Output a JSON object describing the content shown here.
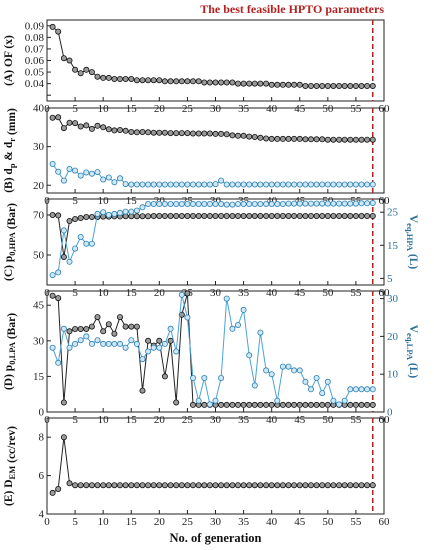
{
  "annotation": "The best feasible HPTO parameters",
  "colors": {
    "black_series": "#222222",
    "blue_series": "#4aa3d6",
    "blue_text": "#2a6f9a",
    "marker_line": "#b22222"
  },
  "chart_data": [
    {
      "type": "line",
      "ylabel": "(A) OF (x)",
      "xlim": [
        0,
        60
      ],
      "ylim": [
        0.025,
        0.095
      ],
      "yticks": [
        0.03,
        0.04,
        0.05,
        0.06,
        0.07,
        0.08,
        0.09
      ],
      "ytick_labels": [
        "",
        "0.04",
        "0.05",
        "0.06",
        "0.07",
        "0.08",
        "0.09"
      ],
      "series": [
        {
          "color": "black",
          "x": [
            1,
            2,
            3,
            4,
            5,
            6,
            7,
            8,
            9,
            10,
            11,
            12,
            13,
            14,
            15,
            16,
            17,
            18,
            19,
            20,
            21,
            22,
            23,
            24,
            25,
            26,
            27,
            28,
            29,
            30,
            31,
            32,
            33,
            34,
            35,
            36,
            37,
            38,
            39,
            40,
            41,
            42,
            43,
            44,
            45,
            46,
            47,
            48,
            49,
            50,
            51,
            52,
            53,
            54,
            55,
            56,
            57,
            58
          ],
          "y": [
            0.089,
            0.085,
            0.062,
            0.06,
            0.052,
            0.049,
            0.052,
            0.05,
            0.046,
            0.045,
            0.045,
            0.044,
            0.044,
            0.044,
            0.044,
            0.043,
            0.043,
            0.043,
            0.043,
            0.043,
            0.042,
            0.042,
            0.042,
            0.042,
            0.042,
            0.042,
            0.042,
            0.041,
            0.041,
            0.041,
            0.041,
            0.041,
            0.041,
            0.04,
            0.04,
            0.04,
            0.04,
            0.04,
            0.04,
            0.039,
            0.039,
            0.039,
            0.039,
            0.039,
            0.039,
            0.038,
            0.038,
            0.038,
            0.038,
            0.038,
            0.038,
            0.038,
            0.038,
            0.038,
            0.038,
            0.038,
            0.038,
            0.038
          ]
        }
      ]
    },
    {
      "type": "line",
      "ylabel": "(B) d",
      "ylabel_sub1": "p",
      "ylabel_mid": " & d",
      "ylabel_sub2": "r",
      "ylabel_unit": " (mm)",
      "xlim": [
        0,
        60
      ],
      "ylim": [
        18,
        40
      ],
      "yticks": [
        20,
        30,
        40
      ],
      "series": [
        {
          "color": "black",
          "x": [
            1,
            2,
            3,
            4,
            5,
            6,
            7,
            8,
            9,
            10,
            11,
            12,
            13,
            14,
            15,
            16,
            17,
            18,
            19,
            20,
            21,
            22,
            23,
            24,
            25,
            26,
            27,
            28,
            29,
            30,
            31,
            32,
            33,
            34,
            35,
            36,
            37,
            38,
            39,
            40,
            41,
            42,
            43,
            44,
            45,
            46,
            47,
            48,
            49,
            50,
            51,
            52,
            53,
            54,
            55,
            56,
            57,
            58
          ],
          "y": [
            37.5,
            37.6,
            34.8,
            36.2,
            36.1,
            35.2,
            35.5,
            34.6,
            35.4,
            35.0,
            34.5,
            34.2,
            34.3,
            34.1,
            33.8,
            33.7,
            33.8,
            33.7,
            33.6,
            33.6,
            33.6,
            33.5,
            33.5,
            33.5,
            33.5,
            33.4,
            33.4,
            33.4,
            33.4,
            33.3,
            33.3,
            33.2,
            32.9,
            32.8,
            32.8,
            32.6,
            32.5,
            32.3,
            32.1,
            32.0,
            32.0,
            32.0,
            32.0,
            32.0,
            32.0,
            31.9,
            31.9,
            31.9,
            31.9,
            31.8,
            31.8,
            31.8,
            31.8,
            31.8,
            31.8,
            31.8,
            31.8,
            31.8
          ]
        },
        {
          "color": "blue",
          "x": [
            1,
            2,
            3,
            4,
            5,
            6,
            7,
            8,
            9,
            10,
            11,
            12,
            13,
            14,
            15,
            16,
            17,
            18,
            19,
            20,
            21,
            22,
            23,
            24,
            25,
            26,
            27,
            28,
            29,
            30,
            31,
            32,
            33,
            34,
            35,
            36,
            37,
            38,
            39,
            40,
            41,
            42,
            43,
            44,
            45,
            46,
            47,
            48,
            49,
            50,
            51,
            52,
            53,
            54,
            55,
            56,
            57,
            58
          ],
          "y": [
            25.5,
            23.5,
            21.2,
            24.2,
            23.8,
            22.5,
            23.3,
            23.0,
            23.4,
            21.5,
            22.0,
            20.8,
            21.8,
            20.3,
            20.2,
            20.2,
            20.2,
            20.2,
            20.2,
            20.2,
            20.2,
            20.2,
            20.2,
            20.2,
            20.2,
            20.2,
            20.2,
            20.2,
            20.2,
            20.3,
            21.2,
            20.2,
            20.2,
            20.2,
            20.2,
            20.2,
            20.2,
            20.2,
            20.2,
            20.2,
            20.2,
            20.2,
            20.2,
            20.2,
            20.2,
            20.2,
            20.2,
            20.2,
            20.2,
            20.2,
            20.2,
            20.2,
            20.2,
            20.2,
            20.2,
            20.2,
            20.2,
            20.2
          ]
        }
      ]
    },
    {
      "type": "line",
      "ylabel": "(C) p",
      "ylabel_sub1": "0,HPA",
      "ylabel_unit": " (Bar)",
      "y2label": "V",
      "y2label_sub": "eq,HPA",
      "y2label_unit": " (L)",
      "xlim": [
        0,
        60
      ],
      "ylim": [
        35,
        78
      ],
      "y2lim": [
        3,
        29
      ],
      "yticks": [
        50,
        70
      ],
      "y2ticks": [
        5,
        15,
        25
      ],
      "series": [
        {
          "color": "black",
          "axis": "left",
          "x": [
            1,
            2,
            3,
            4,
            5,
            6,
            7,
            8,
            9,
            10,
            11,
            12,
            13,
            14,
            15,
            16,
            17,
            18,
            19,
            20,
            21,
            22,
            23,
            24,
            25,
            26,
            27,
            28,
            29,
            30,
            31,
            32,
            33,
            34,
            35,
            36,
            37,
            38,
            39,
            40,
            41,
            42,
            43,
            44,
            45,
            46,
            47,
            48,
            49,
            50,
            51,
            52,
            53,
            54,
            55,
            56,
            57,
            58
          ],
          "y": [
            70,
            69.8,
            49,
            67,
            68,
            68.5,
            69,
            69,
            69,
            69.2,
            69.2,
            69.3,
            69.3,
            69.4,
            69.4,
            69.4,
            69.4,
            69.4,
            69.5,
            69.5,
            69.5,
            69.5,
            69.5,
            69.5,
            69.5,
            69.5,
            69.5,
            69.5,
            69.5,
            69.5,
            69.5,
            69.5,
            69.5,
            69.5,
            69.5,
            69.5,
            69.5,
            69.5,
            69.5,
            69.5,
            69.5,
            69.5,
            69.5,
            69.5,
            69.5,
            69.5,
            69.5,
            69.5,
            69.5,
            69.5,
            69.5,
            69.5,
            69.5,
            69.5,
            69.5,
            69.5,
            69.5,
            69.5
          ]
        },
        {
          "color": "blue",
          "axis": "right",
          "x": [
            1,
            2,
            3,
            4,
            5,
            6,
            7,
            8,
            9,
            10,
            11,
            12,
            13,
            14,
            15,
            16,
            17,
            18,
            19,
            20,
            21,
            22,
            23,
            24,
            25,
            26,
            27,
            28,
            29,
            30,
            31,
            32,
            33,
            34,
            35,
            36,
            37,
            38,
            39,
            40,
            41,
            42,
            43,
            44,
            45,
            46,
            47,
            48,
            49,
            50,
            51,
            52,
            53,
            54,
            55,
            56,
            57,
            58
          ],
          "y": [
            6.0,
            6.8,
            19.5,
            10.0,
            14.0,
            17.5,
            15.5,
            15.5,
            24.5,
            25.0,
            24.2,
            24.5,
            24.8,
            25.2,
            25.2,
            25.5,
            26.5,
            27.5,
            27.5,
            27.5,
            27.5,
            27.5,
            27.5,
            27.5,
            27.5,
            27.5,
            27.5,
            27.5,
            27.5,
            27.5,
            27.5,
            27.3,
            27.3,
            27.5,
            27.5,
            27.5,
            27.5,
            27.5,
            27.5,
            27.5,
            27.5,
            27.5,
            27.6,
            27.6,
            27.6,
            27.6,
            27.6,
            27.6,
            27.6,
            27.6,
            27.6,
            27.6,
            27.6,
            27.6,
            27.6,
            27.7,
            27.7,
            27.8
          ]
        }
      ]
    },
    {
      "type": "line",
      "ylabel": "(D) p",
      "ylabel_sub1": "0,LPA",
      "ylabel_unit": " (Bar)",
      "y2label": "V",
      "y2label_sub": "eq,LPA",
      "y2label_unit": " (L)",
      "xlim": [
        0,
        60
      ],
      "ylim": [
        0,
        51
      ],
      "y2lim": [
        0,
        32
      ],
      "yticks": [
        0,
        15,
        30,
        45
      ],
      "y2ticks": [
        0,
        10,
        20,
        30
      ],
      "series": [
        {
          "color": "black",
          "axis": "left",
          "x": [
            1,
            2,
            3,
            4,
            5,
            6,
            7,
            8,
            9,
            10,
            11,
            12,
            13,
            14,
            15,
            16,
            17,
            18,
            19,
            20,
            21,
            22,
            23,
            24,
            25,
            26,
            27,
            28,
            29,
            30,
            31,
            32,
            33,
            34,
            35,
            36,
            37,
            38,
            39,
            40,
            41,
            42,
            43,
            44,
            45,
            46,
            47,
            48,
            49,
            50,
            51,
            52,
            53,
            54,
            55,
            56,
            57,
            58
          ],
          "y": [
            49,
            48,
            4,
            34,
            35,
            35,
            35,
            36,
            40,
            34,
            37,
            33,
            40,
            36,
            36,
            36,
            9,
            30,
            28,
            30,
            15,
            30,
            4,
            41,
            50,
            3,
            3,
            3,
            3,
            3,
            3,
            3,
            3,
            3,
            3,
            3,
            3,
            3,
            3,
            3,
            3,
            3,
            3,
            3,
            3,
            3,
            3,
            3,
            3,
            3,
            3,
            3,
            3,
            3,
            3,
            3,
            3,
            3
          ]
        },
        {
          "color": "blue",
          "axis": "right",
          "x": [
            1,
            2,
            3,
            4,
            5,
            6,
            7,
            8,
            9,
            10,
            11,
            12,
            13,
            14,
            15,
            16,
            17,
            18,
            19,
            20,
            21,
            22,
            23,
            24,
            25,
            26,
            27,
            28,
            29,
            30,
            31,
            32,
            33,
            34,
            35,
            36,
            37,
            38,
            39,
            40,
            41,
            42,
            43,
            44,
            45,
            46,
            47,
            48,
            49,
            50,
            51,
            52,
            53,
            54,
            55,
            56,
            57,
            58
          ],
          "y": [
            17,
            13,
            22,
            17,
            18,
            19,
            20,
            18,
            19,
            18,
            18,
            18,
            18,
            17,
            19,
            18,
            14,
            16,
            17,
            17,
            18,
            22,
            16,
            31,
            25,
            9,
            3,
            9,
            2,
            3,
            9,
            30,
            22,
            23,
            27,
            15,
            7,
            21,
            11,
            10,
            3,
            12,
            12,
            11,
            11,
            8,
            6,
            9,
            5,
            8,
            3,
            2,
            3,
            6,
            6,
            6,
            6,
            6
          ]
        }
      ]
    },
    {
      "type": "line",
      "ylabel": "(E) D",
      "ylabel_sub1": "EM",
      "ylabel_unit": " (cc/rev)",
      "xlabel": "No. of generation",
      "xlim": [
        0,
        60
      ],
      "ylim": [
        4,
        9
      ],
      "yticks": [
        4,
        6,
        8
      ],
      "xticks": [
        0,
        5,
        10,
        15,
        20,
        25,
        30,
        35,
        40,
        45,
        50,
        55,
        60
      ],
      "series": [
        {
          "color": "black",
          "x": [
            1,
            2,
            3,
            4,
            5,
            6,
            7,
            8,
            9,
            10,
            11,
            12,
            13,
            14,
            15,
            16,
            17,
            18,
            19,
            20,
            21,
            22,
            23,
            24,
            25,
            26,
            27,
            28,
            29,
            30,
            31,
            32,
            33,
            34,
            35,
            36,
            37,
            38,
            39,
            40,
            41,
            42,
            43,
            44,
            45,
            46,
            47,
            48,
            49,
            50,
            51,
            52,
            53,
            54,
            55,
            56,
            57,
            58
          ],
          "y": [
            5.1,
            5.3,
            8.0,
            5.6,
            5.5,
            5.5,
            5.5,
            5.5,
            5.5,
            5.5,
            5.5,
            5.5,
            5.5,
            5.5,
            5.5,
            5.5,
            5.5,
            5.5,
            5.5,
            5.5,
            5.5,
            5.5,
            5.5,
            5.5,
            5.5,
            5.5,
            5.5,
            5.5,
            5.5,
            5.5,
            5.5,
            5.5,
            5.5,
            5.5,
            5.5,
            5.5,
            5.5,
            5.5,
            5.5,
            5.5,
            5.5,
            5.5,
            5.5,
            5.5,
            5.5,
            5.5,
            5.5,
            5.5,
            5.5,
            5.5,
            5.5,
            5.5,
            5.5,
            5.5,
            5.5,
            5.5,
            5.5,
            5.5
          ]
        }
      ]
    }
  ],
  "best_generation": 58
}
